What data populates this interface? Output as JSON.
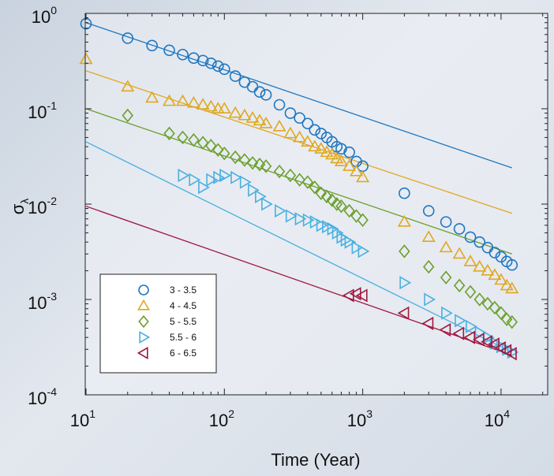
{
  "chart_data": {
    "type": "scatter",
    "xscale": "log",
    "yscale": "log",
    "xlim": [
      10,
      20000
    ],
    "ylim": [
      0.0001,
      1
    ],
    "xlabel": "Time (Year)",
    "ylabel_main": "σ",
    "ylabel_sub": "λ",
    "x_ticks": [
      {
        "base": "10",
        "exp": "1"
      },
      {
        "base": "10",
        "exp": "2"
      },
      {
        "base": "10",
        "exp": "3"
      },
      {
        "base": "10",
        "exp": "4"
      }
    ],
    "y_ticks": [
      {
        "base": "10",
        "exp": "-4"
      },
      {
        "base": "10",
        "exp": "-3"
      },
      {
        "base": "10",
        "exp": "-2"
      },
      {
        "base": "10",
        "exp": "-1"
      },
      {
        "base": "10",
        "exp": "0"
      }
    ],
    "grid": false,
    "legend_position": "bottom-left",
    "series": [
      {
        "name": "3 - 3.5",
        "marker": "circle",
        "color": "#1f77c0",
        "x": [
          10,
          20,
          30,
          40,
          50,
          60,
          70,
          80,
          90,
          100,
          120,
          140,
          160,
          180,
          200,
          250,
          300,
          350,
          400,
          450,
          500,
          550,
          600,
          650,
          700,
          800,
          900,
          1000,
          2000,
          3000,
          4000,
          5000,
          6000,
          7000,
          8000,
          9000,
          10000,
          11000,
          12000
        ],
        "y": [
          0.78,
          0.55,
          0.46,
          0.41,
          0.37,
          0.34,
          0.32,
          0.3,
          0.28,
          0.26,
          0.22,
          0.19,
          0.17,
          0.15,
          0.14,
          0.11,
          0.09,
          0.08,
          0.07,
          0.06,
          0.055,
          0.05,
          0.045,
          0.04,
          0.038,
          0.035,
          0.028,
          0.025,
          0.013,
          0.0085,
          0.0065,
          0.0055,
          0.0045,
          0.004,
          0.0035,
          0.0031,
          0.0028,
          0.0025,
          0.0023
        ],
        "fit": {
          "x": [
            10,
            12000
          ],
          "y": [
            0.8,
            0.024
          ]
        }
      },
      {
        "name": "4 - 4.5",
        "marker": "triangle-up",
        "color": "#e0a820",
        "x": [
          10,
          20,
          30,
          40,
          50,
          60,
          70,
          80,
          90,
          100,
          120,
          140,
          160,
          180,
          200,
          250,
          300,
          350,
          400,
          450,
          500,
          550,
          600,
          650,
          700,
          800,
          900,
          1000,
          2000,
          3000,
          4000,
          5000,
          6000,
          7000,
          8000,
          9000,
          10000,
          11000,
          12000
        ],
        "y": [
          0.33,
          0.17,
          0.13,
          0.12,
          0.12,
          0.115,
          0.11,
          0.105,
          0.1,
          0.1,
          0.09,
          0.085,
          0.08,
          0.075,
          0.07,
          0.065,
          0.055,
          0.05,
          0.045,
          0.04,
          0.038,
          0.035,
          0.033,
          0.03,
          0.028,
          0.025,
          0.022,
          0.019,
          0.0065,
          0.0045,
          0.0035,
          0.003,
          0.0025,
          0.0022,
          0.002,
          0.0018,
          0.0016,
          0.0014,
          0.0013
        ],
        "fit": {
          "x": [
            10,
            12000
          ],
          "y": [
            0.25,
            0.008
          ]
        }
      },
      {
        "name": "5 - 5.5",
        "marker": "diamond",
        "color": "#6aa02c",
        "x": [
          20,
          40,
          50,
          60,
          70,
          80,
          90,
          100,
          120,
          140,
          160,
          180,
          200,
          250,
          300,
          350,
          400,
          450,
          500,
          550,
          600,
          650,
          700,
          800,
          900,
          1000,
          2000,
          3000,
          4000,
          5000,
          6000,
          7000,
          8000,
          9000,
          10000,
          11000,
          12000
        ],
        "y": [
          0.085,
          0.055,
          0.05,
          0.047,
          0.044,
          0.041,
          0.037,
          0.034,
          0.031,
          0.029,
          0.027,
          0.026,
          0.025,
          0.022,
          0.02,
          0.018,
          0.017,
          0.015,
          0.013,
          0.012,
          0.011,
          0.01,
          0.0095,
          0.0085,
          0.0075,
          0.0068,
          0.0032,
          0.0022,
          0.0017,
          0.0014,
          0.0012,
          0.001,
          0.0009,
          0.00082,
          0.00072,
          0.00062,
          0.00058
        ],
        "fit": {
          "x": [
            10,
            12000
          ],
          "y": [
            0.1,
            0.003
          ]
        }
      },
      {
        "name": "5.5 - 6",
        "marker": "triangle-right",
        "color": "#4ab0e0",
        "x": [
          50,
          60,
          70,
          80,
          90,
          100,
          120,
          140,
          160,
          180,
          200,
          250,
          300,
          350,
          400,
          450,
          500,
          550,
          600,
          650,
          700,
          750,
          800,
          900,
          1000,
          2000,
          3000,
          4000,
          5000,
          6000,
          7000,
          8000,
          9000,
          10000,
          11000,
          12000
        ],
        "y": [
          0.02,
          0.018,
          0.015,
          0.018,
          0.019,
          0.02,
          0.019,
          0.017,
          0.014,
          0.012,
          0.01,
          0.0085,
          0.0075,
          0.007,
          0.0068,
          0.0065,
          0.006,
          0.0058,
          0.0055,
          0.005,
          0.0045,
          0.0042,
          0.004,
          0.0035,
          0.0032,
          0.0015,
          0.001,
          0.00072,
          0.0006,
          0.00052,
          0.00045,
          0.0004,
          0.00035,
          0.00032,
          0.0003,
          0.00028
        ],
        "fit": {
          "x": [
            10,
            12000
          ],
          "y": [
            0.045,
            0.00028
          ]
        }
      },
      {
        "name": "6 - 6.5",
        "marker": "triangle-left",
        "color": "#a01840",
        "x": [
          800,
          900,
          1000,
          2000,
          3000,
          4000,
          5000,
          6000,
          7000,
          8000,
          9000,
          10000,
          11000,
          12000
        ],
        "y": [
          0.0011,
          0.00115,
          0.0011,
          0.00072,
          0.00056,
          0.00048,
          0.00044,
          0.0004,
          0.00038,
          0.00036,
          0.00034,
          0.00031,
          0.00029,
          0.00027
        ],
        "fit": {
          "x": [
            10,
            12000
          ],
          "y": [
            0.0095,
            0.00026
          ]
        }
      }
    ]
  }
}
